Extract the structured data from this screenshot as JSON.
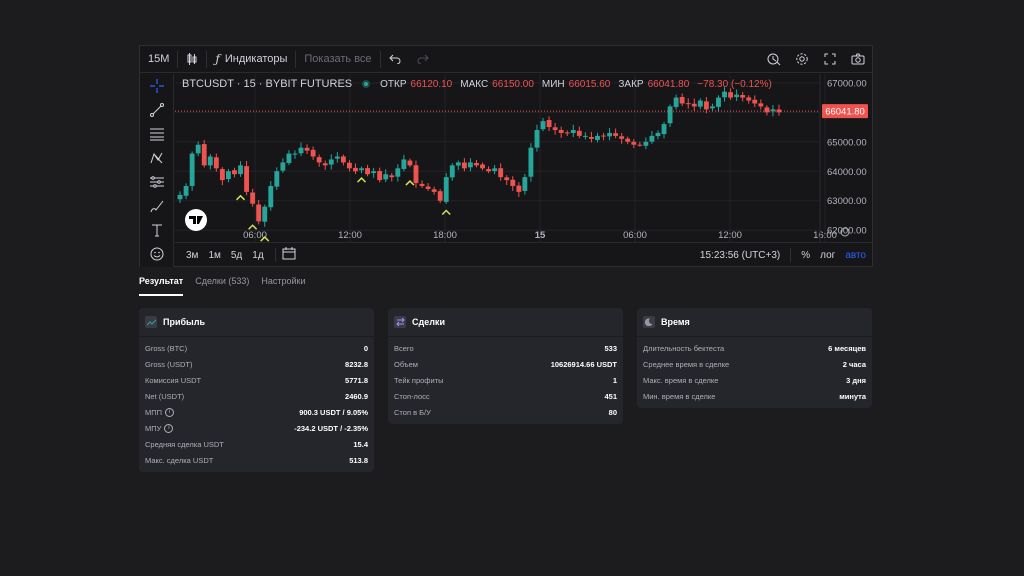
{
  "toolbar": {
    "interval": "15M",
    "indicators_label": "Индикаторы",
    "show_all_label": "Показать все"
  },
  "legend": {
    "symbol": "BTCUSDT · 15 · BYBIT FUTURES",
    "open_label": "ОТКР",
    "open_value": "66120.10",
    "high_label": "МАКС",
    "high_value": "66150.00",
    "low_label": "МИН",
    "low_value": "66015.60",
    "close_label": "ЗАКР",
    "close_value": "66041.80",
    "change": "−78.30 (−0.12%)"
  },
  "chart_data": {
    "type": "candlestick",
    "symbol": "BTCUSDT",
    "x_ticks": [
      "06:00",
      "12:00",
      "18:00",
      "15",
      "06:00",
      "12:00",
      "16:00"
    ],
    "y_ticks": [
      "67000.00",
      "66000.00",
      "65000.00",
      "64000.00",
      "63000.00",
      "62000.00"
    ],
    "ylim": [
      61600,
      67300
    ],
    "last_price": "66041.80",
    "price_path": [
      63200,
      63500,
      64600,
      64900,
      64200,
      64500,
      64100,
      63700,
      64000,
      63900,
      64200,
      63300,
      62900,
      62300,
      62800,
      63500,
      64000,
      64300,
      64600,
      64600,
      64800,
      64700,
      64500,
      64300,
      64200,
      64400,
      64500,
      64300,
      64100,
      64000,
      64100,
      63900,
      64000,
      63700,
      63900,
      63800,
      64100,
      64400,
      64200,
      63600,
      63500,
      63400,
      63300,
      63000,
      63800,
      64200,
      64300,
      64100,
      64300,
      64200,
      64100,
      64000,
      64100,
      63800,
      63700,
      63500,
      63300,
      63800,
      64800,
      65400,
      65700,
      65500,
      65400,
      65300,
      65300,
      65400,
      65200,
      65200,
      65100,
      65200,
      65200,
      65300,
      65200,
      65100,
      65000,
      64900,
      64900,
      65000,
      65200,
      65300,
      65600,
      66200,
      66500,
      66300,
      66300,
      66200,
      66400,
      66100,
      66200,
      66500,
      66700,
      66500,
      66600,
      66500,
      66400,
      66300,
      66200,
      66000,
      66100,
      66000
    ],
    "grid": true,
    "colors": {
      "up": "#26a69a",
      "down": "#ef5350",
      "background": "#161619",
      "grid": "#232328"
    }
  },
  "bottombar": {
    "ranges": [
      "3м",
      "1м",
      "5д",
      "1д"
    ],
    "time": "15:23:56 (UTC+3)",
    "percent": "%",
    "log": "лог",
    "auto": "авто"
  },
  "tabs": [
    "Результат",
    "Сделки (533)",
    "Настройки"
  ],
  "cards": {
    "profit": {
      "title": "Прибыль",
      "icon": "trend-icon",
      "rows": [
        {
          "label": "Gross (BTC)",
          "value": "0"
        },
        {
          "label": "Gross (USDT)",
          "value": "8232.8"
        },
        {
          "label": "Комиссия USDT",
          "value": "5771.8"
        },
        {
          "label": "Net (USDT)",
          "value": "2460.9"
        },
        {
          "label": "МПП",
          "value": "900.3 USDT / 9.05%"
        },
        {
          "label": "МПУ",
          "value": "-234.2 USDT / -2.35%"
        },
        {
          "label": "Средняя сделка USDT",
          "value": "15.4"
        },
        {
          "label": "Макс. сделка USDT",
          "value": "513.8"
        }
      ]
    },
    "trades": {
      "title": "Сделки",
      "icon": "swap-icon",
      "rows": [
        {
          "label": "Всего",
          "value": "533"
        },
        {
          "label": "Объем",
          "value": "10626914.66 USDT"
        },
        {
          "label": "Тейк профиты",
          "value": "1"
        },
        {
          "label": "Стоп-лосс",
          "value": "451"
        },
        {
          "label": "Стоп в Б/У",
          "value": "80"
        }
      ]
    },
    "time": {
      "title": "Время",
      "icon": "moon-icon",
      "rows": [
        {
          "label": "Длительность бектеста",
          "value": "6 месяцев"
        },
        {
          "label": "Среднее время в сделке",
          "value": "2 часа"
        },
        {
          "label": "Макс. время в сделке",
          "value": "3 дня"
        },
        {
          "label": "Мин. время в сделке",
          "value": "минута"
        }
      ]
    }
  }
}
